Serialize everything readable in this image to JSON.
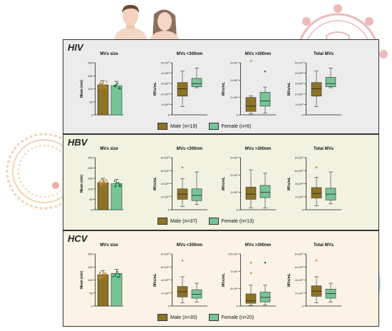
{
  "colors": {
    "male": "#8c7325",
    "female": "#77c497",
    "male_point": "#c88a3a",
    "female_point": "#1f7a43",
    "panel_hiv": "#ececec",
    "panel_hbv": "#f1f2df",
    "panel_hcv": "#fbf3e5"
  },
  "labels": {
    "mvs_size": "MVs size",
    "mvs_lt300": "MVs <300nm",
    "mvs_gt300": "MVs >300nm",
    "total_mvs": "Total MVs",
    "mean_nm": "Mean (nm)",
    "mvs_ml": "MVs/mL"
  },
  "panels": [
    {
      "key": "hiv",
      "title": "HIV",
      "legend": {
        "male": "Male (n=19)",
        "female": "Female (n=6)"
      },
      "size_ticks": [
        "0",
        "50",
        "100",
        "150",
        "200"
      ],
      "lt300_ticks": [
        "0",
        "1×10¹⁰",
        "2×10¹⁰",
        "3×10¹⁰",
        "4×10¹⁰",
        "5×10¹⁰"
      ],
      "gt300_ticks": [
        "0",
        "1×10⁹",
        "2×10⁹",
        "3×10⁹"
      ],
      "total_ticks": [
        "0",
        "1×10¹⁰",
        "2×10¹⁰",
        "3×10¹⁰",
        "4×10¹⁰",
        "5×10¹⁰"
      ]
    },
    {
      "key": "hbv",
      "title": "HBV",
      "legend": {
        "male": "Male (n=37)",
        "female": "Female (n=13)"
      },
      "size_ticks": [
        "0",
        "50",
        "100",
        "150",
        "200",
        "250"
      ],
      "lt300_ticks": [
        "0",
        "2×10¹⁰",
        "4×10¹⁰",
        "6×10¹⁰",
        "8×10¹⁰"
      ],
      "gt300_ticks": [
        "0",
        "1×10⁹",
        "2×10⁹",
        "3×10⁹"
      ],
      "total_ticks": [
        "0",
        "2×10¹⁰",
        "4×10¹⁰",
        "6×10¹⁰",
        "8×10¹⁰"
      ]
    },
    {
      "key": "hcv",
      "title": "HCV",
      "legend": {
        "male": "Male (n=30)",
        "female": "Female (n=20)"
      },
      "size_ticks": [
        "0",
        "50",
        "100",
        "150",
        "200"
      ],
      "lt300_ticks": [
        "0",
        "2×10¹⁰",
        "4×10¹⁰",
        "6×10¹⁰",
        "8×10¹⁰"
      ],
      "gt300_ticks": [
        "0",
        "5×10⁸",
        "1×10⁹",
        "1.5×10⁹"
      ],
      "total_ticks": [
        "0",
        "2×10¹⁰",
        "4×10¹⁰",
        "6×10¹⁰",
        "8×10¹⁰"
      ]
    }
  ],
  "chart_data": [
    {
      "panel": "HIV",
      "chart": "MVs size",
      "type": "bar",
      "categories": [
        "Male",
        "Female"
      ],
      "values": [
        115,
        112
      ],
      "ylim": [
        0,
        200
      ]
    },
    {
      "panel": "HIV",
      "chart": "MVs <300nm",
      "type": "box",
      "ylim": [
        0,
        50000000000.0
      ],
      "series": [
        {
          "name": "Male",
          "whisker": [
            8000000000.0,
            42000000000.0
          ],
          "q1": 18000000000.0,
          "median": 25000000000.0,
          "q3": 31000000000.0,
          "outliers": []
        },
        {
          "name": "Female",
          "whisker": [
            26000000000.0,
            45000000000.0
          ],
          "q1": 27000000000.0,
          "median": 30000000000.0,
          "q3": 35000000000.0,
          "outliers": []
        }
      ]
    },
    {
      "panel": "HIV",
      "chart": "MVs >300nm",
      "type": "box",
      "ylim": [
        0,
        3000000000.0
      ],
      "series": [
        {
          "name": "Male",
          "whisker": [
            50000000.0,
            1100000000.0
          ],
          "q1": 200000000.0,
          "median": 500000000.0,
          "q3": 1000000000.0,
          "outliers": [
            3100000000.0
          ]
        },
        {
          "name": "Female",
          "whisker": [
            100000000.0,
            1600000000.0
          ],
          "q1": 500000000.0,
          "median": 800000000.0,
          "q3": 1300000000.0,
          "outliers": [
            2500000000.0
          ]
        }
      ]
    },
    {
      "panel": "HIV",
      "chart": "Total MVs",
      "type": "box",
      "ylim": [
        0,
        50000000000.0
      ],
      "series": [
        {
          "name": "Male",
          "whisker": [
            8000000000.0,
            42000000000.0
          ],
          "q1": 18000000000.0,
          "median": 25000000000.0,
          "q3": 31000000000.0,
          "outliers": []
        },
        {
          "name": "Female",
          "whisker": [
            26000000000.0,
            45000000000.0
          ],
          "q1": 27000000000.0,
          "median": 30000000000.0,
          "q3": 36000000000.0,
          "outliers": []
        }
      ]
    },
    {
      "panel": "HBV",
      "chart": "MVs size",
      "type": "bar",
      "categories": [
        "Male",
        "Female"
      ],
      "values": [
        130,
        125
      ],
      "ylim": [
        0,
        250
      ]
    },
    {
      "panel": "HBV",
      "chart": "MVs <300nm",
      "type": "box",
      "ylim": [
        0,
        80000000000.0
      ],
      "series": [
        {
          "name": "Male",
          "whisker": [
            5000000000.0,
            48000000000.0
          ],
          "q1": 16000000000.0,
          "median": 24000000000.0,
          "q3": 32000000000.0,
          "outliers": [
            65000000000.0
          ]
        },
        {
          "name": "Female",
          "whisker": [
            8000000000.0,
            58000000000.0
          ],
          "q1": 14000000000.0,
          "median": 22000000000.0,
          "q3": 32000000000.0,
          "outliers": []
        }
      ]
    },
    {
      "panel": "HBV",
      "chart": "MVs >300nm",
      "type": "box",
      "ylim": [
        0,
        3000000000.0
      ],
      "series": [
        {
          "name": "Male",
          "whisker": [
            100000000.0,
            2300000000.0
          ],
          "q1": 600000000.0,
          "median": 900000000.0,
          "q3": 1300000000.0,
          "outliers": []
        },
        {
          "name": "Female",
          "whisker": [
            100000000.0,
            2100000000.0
          ],
          "q1": 700000000.0,
          "median": 1000000000.0,
          "q3": 1400000000.0,
          "outliers": []
        }
      ]
    },
    {
      "panel": "HBV",
      "chart": "Total MVs",
      "type": "box",
      "ylim": [
        0,
        80000000000.0
      ],
      "series": [
        {
          "name": "Male",
          "whisker": [
            6000000000.0,
            50000000000.0
          ],
          "q1": 18000000000.0,
          "median": 25000000000.0,
          "q3": 34000000000.0,
          "outliers": [
            65000000000.0
          ]
        },
        {
          "name": "Female",
          "whisker": [
            9000000000.0,
            58000000000.0
          ],
          "q1": 15000000000.0,
          "median": 24000000000.0,
          "q3": 33000000000.0,
          "outliers": []
        }
      ]
    },
    {
      "panel": "HCV",
      "chart": "MVs size",
      "type": "bar",
      "categories": [
        "Male",
        "Female"
      ],
      "values": [
        120,
        125
      ],
      "ylim": [
        0,
        200
      ]
    },
    {
      "panel": "HCV",
      "chart": "MVs <300nm",
      "type": "box",
      "ylim": [
        0,
        80000000000.0
      ],
      "series": [
        {
          "name": "Male",
          "whisker": [
            5000000000.0,
            45000000000.0
          ],
          "q1": 14000000000.0,
          "median": 22000000000.0,
          "q3": 30000000000.0,
          "outliers": [
            70000000000.0
          ]
        },
        {
          "name": "Female",
          "whisker": [
            6000000000.0,
            35000000000.0
          ],
          "q1": 12000000000.0,
          "median": 18000000000.0,
          "q3": 25000000000.0,
          "outliers": []
        }
      ]
    },
    {
      "panel": "HCV",
      "chart": "MVs >300nm",
      "type": "box",
      "ylim": [
        0,
        1500000000.0
      ],
      "series": [
        {
          "name": "Male",
          "whisker": [
            20000000.0,
            600000000.0
          ],
          "q1": 80000000.0,
          "median": 150000000.0,
          "q3": 350000000.0,
          "outliers": [
            950000000.0,
            1250000000.0
          ]
        },
        {
          "name": "Female",
          "whisker": [
            30000000.0,
            600000000.0
          ],
          "q1": 120000000.0,
          "median": 250000000.0,
          "q3": 400000000.0,
          "outliers": [
            1250000000.0
          ]
        }
      ]
    },
    {
      "panel": "HCV",
      "chart": "Total MVs",
      "type": "box",
      "ylim": [
        0,
        80000000000.0
      ],
      "series": [
        {
          "name": "Male",
          "whisker": [
            5000000000.0,
            45000000000.0
          ],
          "q1": 15000000000.0,
          "median": 23000000000.0,
          "q3": 31000000000.0,
          "outliers": [
            70000000000.0
          ]
        },
        {
          "name": "Female",
          "whisker": [
            6000000000.0,
            35000000000.0
          ],
          "q1": 12000000000.0,
          "median": 19000000000.0,
          "q3": 26000000000.0,
          "outliers": []
        }
      ]
    }
  ]
}
